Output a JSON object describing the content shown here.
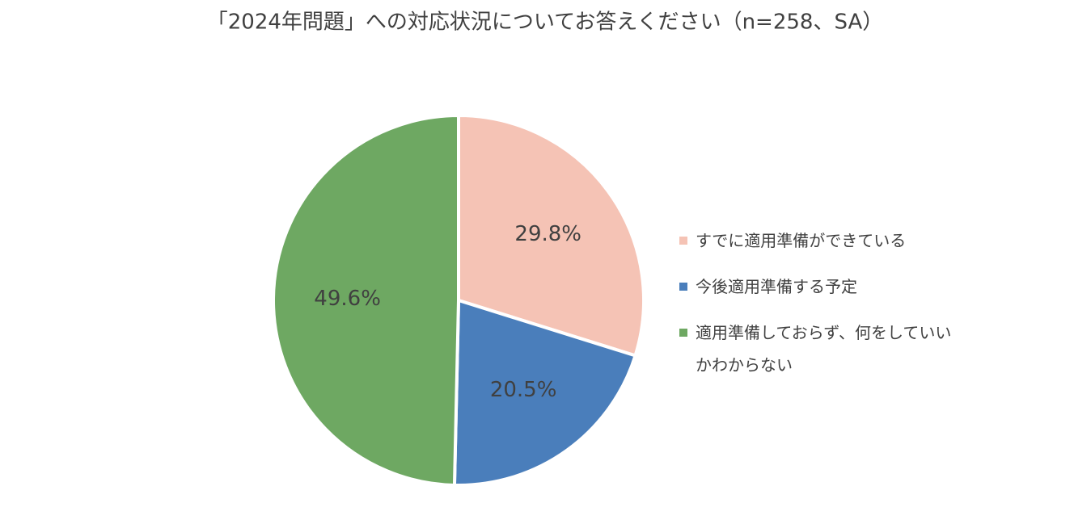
{
  "chart_data": {
    "type": "pie",
    "title": "「2024年問題」への対応状況についてお答えください（n=258、SA）",
    "categories": [
      "すでに適用準備ができている",
      "今後適用準備する予定",
      "適用準備しておらず、何をしていいかわからない"
    ],
    "values": [
      29.8,
      20.5,
      49.6
    ],
    "value_labels": [
      "29.8%",
      "20.5%",
      "49.6%"
    ],
    "colors": [
      "#f5c3b5",
      "#4a7ebb",
      "#6ea862"
    ],
    "legend": "right"
  }
}
